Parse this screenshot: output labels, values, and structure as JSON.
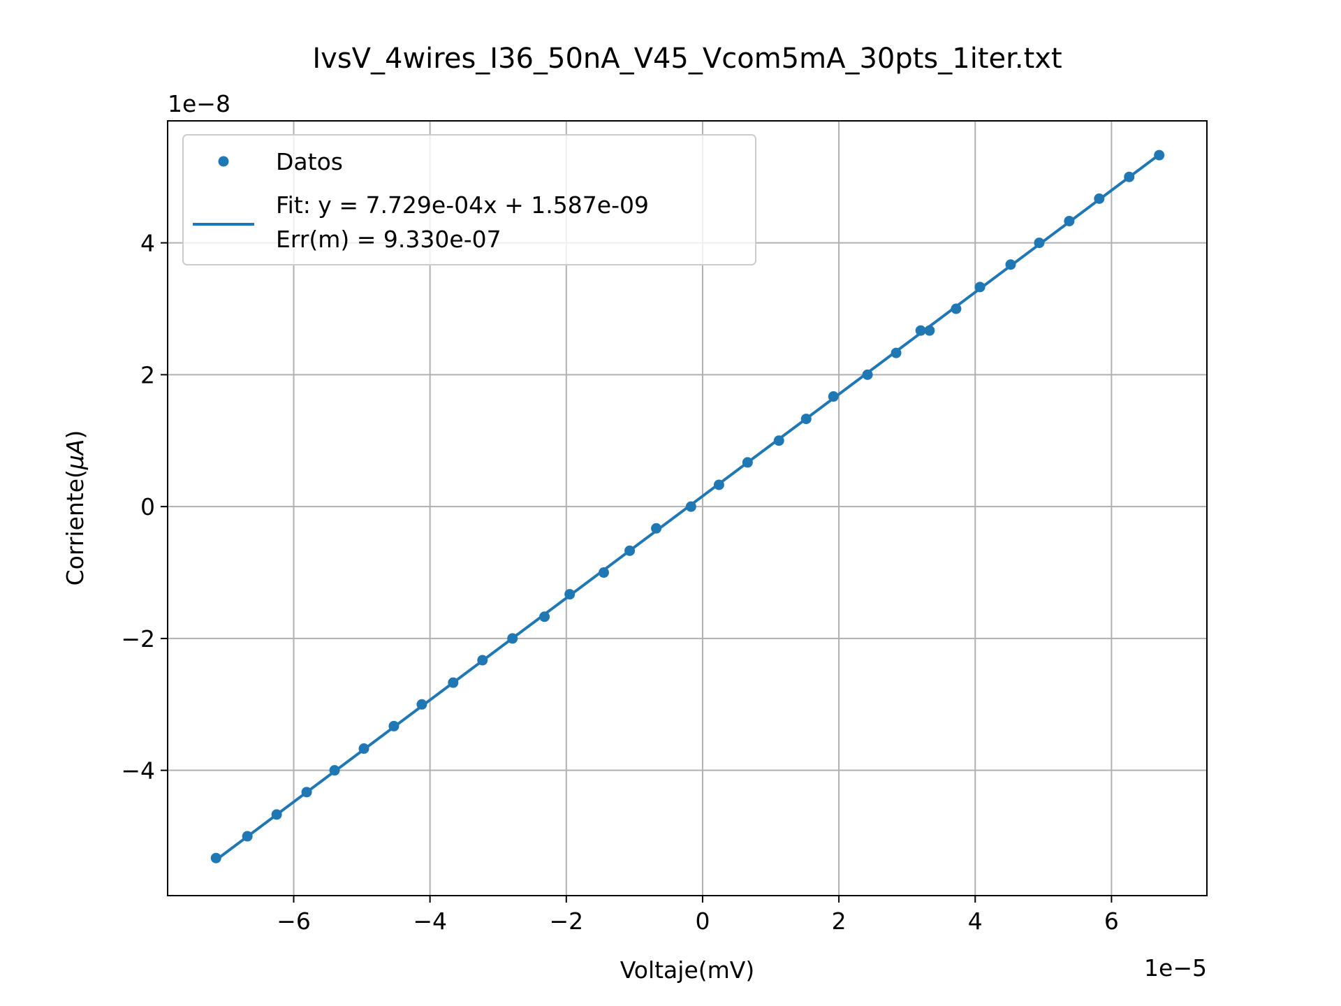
{
  "chart_data": {
    "type": "scatter",
    "title": "IvsV_4wires_I36_50nA_V45_Vcom5mA_30pts_1iter.txt",
    "xlabel": "Voltaje(mV)",
    "ylabel_prefix": "Corriente(",
    "ylabel_mu": "μ",
    "ylabel_unit": "A",
    "ylabel_suffix": ")",
    "x_offset_text": "1e−5",
    "y_offset_text": "1e−8",
    "x_scale": 1e-05,
    "y_scale": 1e-08,
    "xlim": [
      -7.85,
      7.4
    ],
    "ylim": [
      -5.9,
      5.85
    ],
    "xticks": [
      -6,
      -4,
      -2,
      0,
      2,
      4,
      6
    ],
    "yticks": [
      -4,
      -2,
      0,
      2,
      4
    ],
    "xtick_labels": [
      "−6",
      "−4",
      "−2",
      "0",
      "2",
      "4",
      "6"
    ],
    "ytick_labels": [
      "−4",
      "−2",
      "0",
      "2",
      "4"
    ],
    "grid": true,
    "legend_position": "top-left",
    "legend": {
      "scatter_label": "Datos",
      "fit_label_line1": "Fit: y = 7.729e-04x + 1.587e-09",
      "fit_label_line2": "Err(m) = 9.330e-07"
    },
    "series": [
      {
        "name": "Datos",
        "kind": "scatter",
        "color": "#1f77b4",
        "x": [
          -7.14,
          -6.68,
          -6.25,
          -5.81,
          -5.4,
          -4.97,
          -4.53,
          -4.12,
          -3.66,
          -3.23,
          -2.79,
          -2.32,
          -1.95,
          -1.45,
          -1.07,
          -0.68,
          -0.17,
          0.24,
          0.66,
          1.12,
          1.52,
          1.92,
          2.42,
          2.84,
          3.2,
          3.33,
          3.72,
          4.07,
          4.52,
          4.94,
          5.38,
          5.82,
          6.26,
          6.7
        ],
        "y": [
          -5.33,
          -5.0,
          -4.67,
          -4.33,
          -4.0,
          -3.67,
          -3.33,
          -3.0,
          -2.67,
          -2.33,
          -2.0,
          -1.67,
          -1.33,
          -1.0,
          -0.67,
          -0.33,
          0.0,
          0.33,
          0.67,
          1.0,
          1.33,
          1.67,
          2.0,
          2.33,
          2.67,
          2.67,
          3.0,
          3.33,
          3.67,
          4.0,
          4.33,
          4.67,
          5.0,
          5.33
        ]
      },
      {
        "name": "Fit: y = 7.729e-04x + 1.587e-09",
        "kind": "line",
        "color": "#1f77b4",
        "slope": 0.0007729,
        "intercept": 1.587e-09
      }
    ]
  }
}
